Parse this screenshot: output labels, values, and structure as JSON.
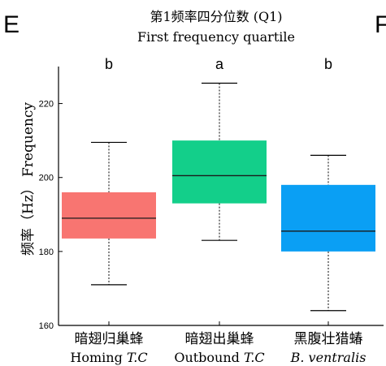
{
  "panel_label": "E",
  "next_panel_label": "F",
  "chart_data": {
    "type": "box",
    "title": "第1频率四分位数 (Q1)",
    "subtitle": "First frequency quartile",
    "ylabel_cn": "频率（Hz）",
    "ylabel_en": "Frequency",
    "ylim": [
      160,
      230
    ],
    "yticks": [
      160,
      180,
      200,
      220
    ],
    "grid": false,
    "categories": [
      {
        "label_cn": "暗翅归巢蜂",
        "label_en_a": "Homing ",
        "label_en_b": "T.C",
        "min": 171,
        "q1": 183.5,
        "median": 189,
        "q3": 196,
        "max": 209.5,
        "sig": "b",
        "color": "#F87571"
      },
      {
        "label_cn": "暗翅出巢蜂",
        "label_en_a": "Outbound ",
        "label_en_b": "T.C",
        "min": 183,
        "q1": 193,
        "median": 200.5,
        "q3": 210,
        "max": 225.5,
        "sig": "a",
        "color": "#13CF8A"
      },
      {
        "label_cn": "黑腹壮猎蝽",
        "label_en_a": "",
        "label_en_b": "B. ventralis",
        "min": 164,
        "q1": 180,
        "median": 185.5,
        "q3": 198,
        "max": 206,
        "sig": "b",
        "color": "#0A9FF4"
      }
    ]
  }
}
